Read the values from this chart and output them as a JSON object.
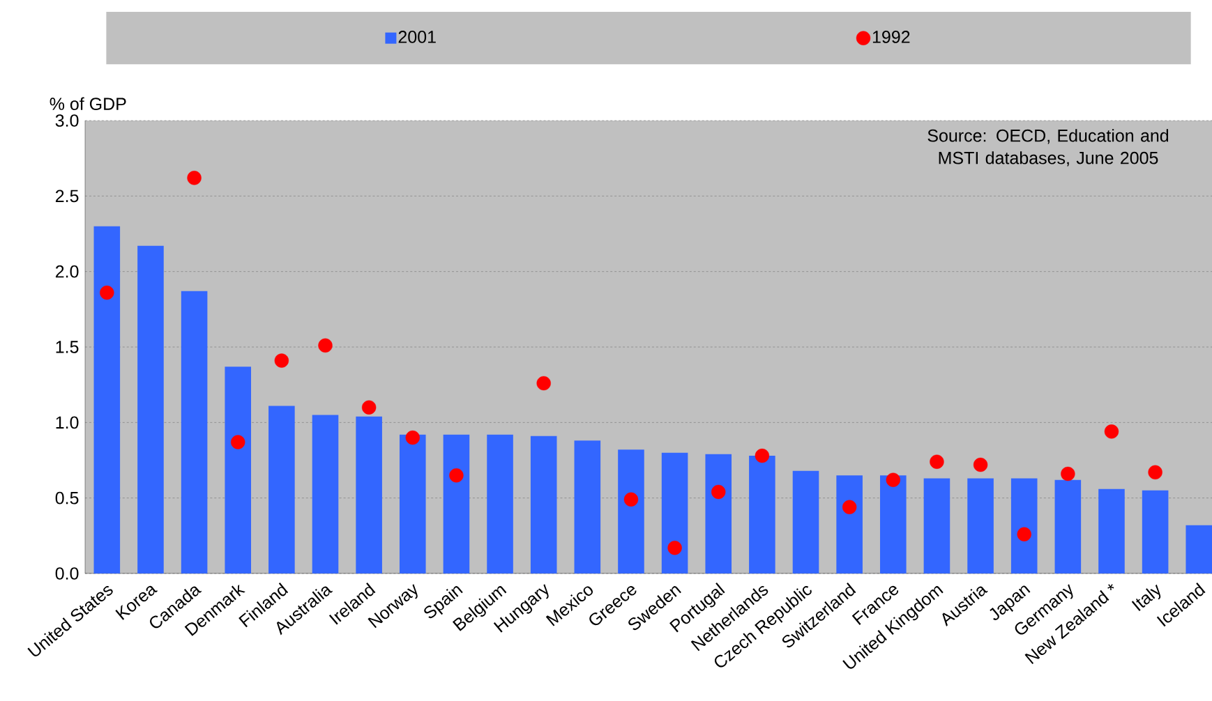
{
  "chart_data": {
    "type": "bar",
    "ylabel": "% of GDP",
    "categories": [
      "United States",
      "Korea",
      "Canada",
      "Denmark",
      "Finland",
      "Australia",
      "Ireland",
      "Norway",
      "Spain",
      "Belgium",
      "Hungary",
      "Mexico",
      "Greece",
      "Sweden",
      "Portugal",
      "Netherlands",
      "Czech Republic",
      "Switzerland",
      "France",
      "United Kingdom",
      "Austria",
      "Japan",
      "Germany",
      "New Zealand *",
      "Italy",
      "Iceland"
    ],
    "series": [
      {
        "name": "2001",
        "color": "#3366ff",
        "values": [
          2.3,
          2.17,
          1.87,
          1.37,
          1.11,
          1.05,
          1.04,
          0.92,
          0.92,
          0.92,
          0.91,
          0.88,
          0.82,
          0.8,
          0.79,
          0.78,
          0.68,
          0.65,
          0.65,
          0.63,
          0.63,
          0.63,
          0.62,
          0.56,
          0.55,
          0.32
        ]
      },
      {
        "name": "1992",
        "type": "scatter",
        "color": "#ff0000",
        "values": [
          1.86,
          null,
          2.62,
          0.87,
          1.41,
          1.51,
          1.1,
          0.9,
          0.65,
          null,
          1.26,
          null,
          0.49,
          0.17,
          0.54,
          0.78,
          null,
          0.44,
          0.62,
          0.74,
          0.72,
          0.26,
          0.66,
          0.94,
          0.67,
          null
        ]
      }
    ],
    "ylim": [
      0,
      3.0
    ],
    "yticks": [
      {
        "value": 0,
        "label": "0.0"
      },
      0.5,
      {
        "value": 1,
        "label": "1.0"
      },
      1.5,
      {
        "value": 2,
        "label": "2.0"
      },
      2.5,
      {
        "value": 3,
        "label": "3.0"
      }
    ],
    "grid": "y",
    "legend": "top",
    "annotations": [
      "Source: OECD, Education and MSTI databases, June 2005"
    ]
  }
}
